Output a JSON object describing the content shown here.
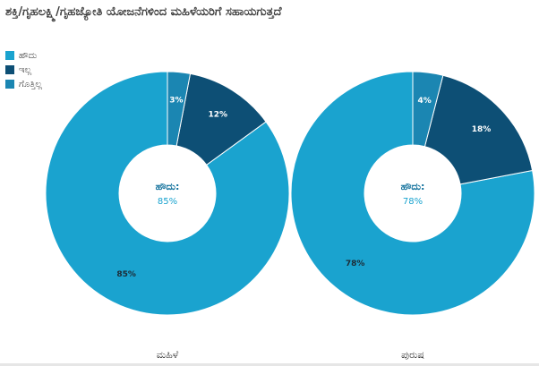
{
  "title": "ಶಕ್ತಿ/ಗೃಹಲಕ್ಷ್ಮಿ/ಗೃಹಜ್ಯೋತಿ ಯೋಜನೆಗಳಿಂದ ಮಹಿಳೆಯರಿಗೆ ಸಹಾಯಗುತ್ತದೆ",
  "colors": {
    "yes": "#1aa3cf",
    "no": "#0d4f75",
    "dont_know": "#1b86b2",
    "page_bg": "#ffffff"
  },
  "legend": [
    {
      "label": "ಹೌದು",
      "color": "#1aa3cf"
    },
    {
      "label": "ಇಲ್ಲ",
      "color": "#0d4f75"
    },
    {
      "label": "ಗೊತ್ತಿಲ್ಲ",
      "color": "#1b86b2"
    }
  ],
  "chart_data": [
    {
      "type": "pie",
      "variant": "donut",
      "name": "ಮಹಿಳೆ",
      "categories": [
        "ಹೌದು",
        "ಇಲ್ಲ",
        "ಗೊತ್ತಿಲ್ಲ"
      ],
      "values": [
        85,
        12,
        3
      ],
      "labels": [
        "85%",
        "12%",
        "3%"
      ],
      "center_title": "ಹೌದು:",
      "center_value": "85%"
    },
    {
      "type": "pie",
      "variant": "donut",
      "name": "ಪುರುಷ",
      "categories": [
        "ಹೌದು",
        "ಇಲ್ಲ",
        "ಗೊತ್ತಿಲ್ಲ"
      ],
      "values": [
        78,
        18,
        4
      ],
      "labels": [
        "78%",
        "18%",
        "4%"
      ],
      "center_title": "ಹೌದು:",
      "center_value": "78%"
    }
  ]
}
